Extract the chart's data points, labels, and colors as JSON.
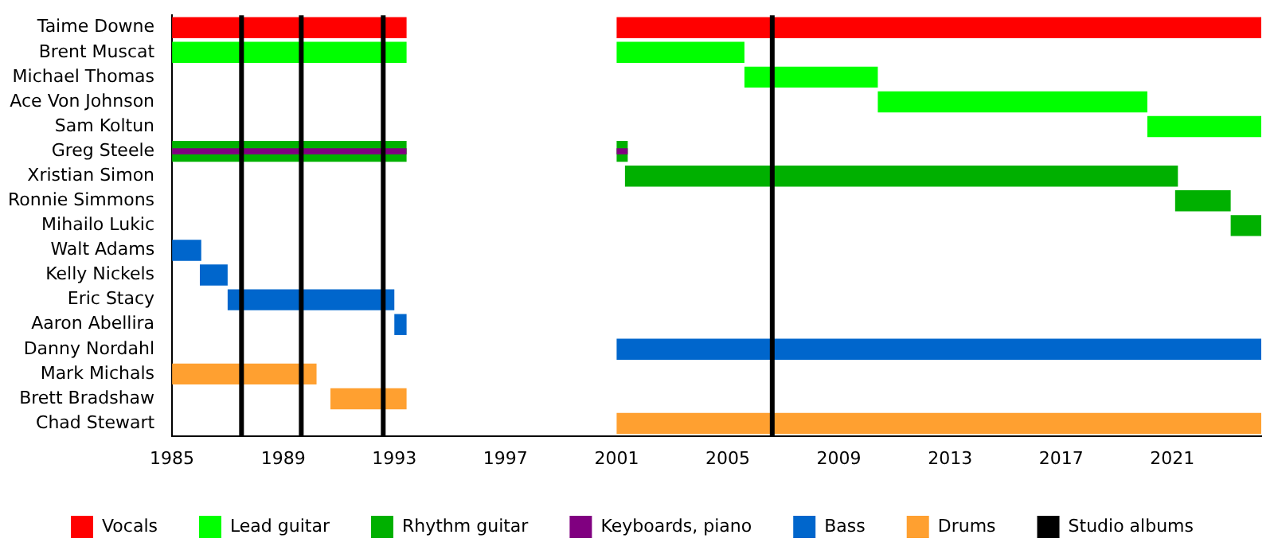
{
  "chart_data": {
    "type": "bar",
    "orientation": "horizontal",
    "categories": [
      "Taime Downe",
      "Brent Muscat",
      "Michael Thomas",
      "Ace Von Johnson",
      "Sam Koltun",
      "Greg Steele",
      "Xristian Simon",
      "Ronnie Simmons",
      "Mihailo Lukic",
      "Walt Adams",
      "Kelly Nickels",
      "Eric Stacy",
      "Aaron Abellira",
      "Danny Nordahl",
      "Mark Michals",
      "Brett Bradshaw",
      "Chad Stewart"
    ],
    "series": [
      {
        "name": "Vocals",
        "color": "#ff0000",
        "base": [
          1985,
          null,
          null,
          null,
          null,
          null,
          null,
          null,
          null,
          null,
          null,
          null,
          null,
          null,
          null,
          null,
          null
        ],
        "values": [
          8.44,
          null,
          null,
          null,
          null,
          null,
          null,
          null,
          null,
          null,
          null,
          null,
          null,
          null,
          null,
          null,
          null
        ]
      },
      {
        "color": "#ff0000",
        "base": [
          2001,
          null,
          null,
          null,
          null,
          null,
          null,
          null,
          null,
          null,
          null,
          null,
          null,
          null,
          null,
          null,
          null
        ],
        "values": [
          23.2,
          null,
          null,
          null,
          null,
          null,
          null,
          null,
          null,
          null,
          null,
          null,
          null,
          null,
          null,
          null,
          null
        ]
      },
      {
        "name": "Lead guitar",
        "color": "#00ff00",
        "base": [
          null,
          1985,
          2005.6,
          2010.4,
          2020.1,
          null,
          null,
          null,
          null,
          null,
          null,
          null,
          null,
          null,
          null,
          null,
          null
        ],
        "values": [
          null,
          8.44,
          4.8,
          9.7,
          4.1,
          null,
          null,
          null,
          null,
          null,
          null,
          null,
          null,
          null,
          null,
          null,
          null
        ]
      },
      {
        "color": "#00ff00",
        "base": [
          null,
          2001,
          null,
          null,
          null,
          null,
          null,
          null,
          null,
          null,
          null,
          null,
          null,
          null,
          null,
          null,
          null
        ],
        "values": [
          null,
          4.6,
          null,
          null,
          null,
          null,
          null,
          null,
          null,
          null,
          null,
          null,
          null,
          null,
          null,
          null,
          null
        ]
      },
      {
        "name": "Rhythm guitar",
        "color": "#00b000",
        "base": [
          null,
          null,
          null,
          null,
          null,
          1985,
          2001.3,
          2021.1,
          2023.1,
          null,
          null,
          null,
          null,
          null,
          null,
          null,
          null
        ],
        "values": [
          null,
          null,
          null,
          null,
          null,
          8.44,
          19.9,
          2.0,
          1.1,
          null,
          null,
          null,
          null,
          null,
          null,
          null,
          null
        ]
      },
      {
        "color": "#00b000",
        "base": [
          null,
          null,
          null,
          null,
          null,
          2001,
          null,
          null,
          null,
          null,
          null,
          null,
          null,
          null,
          null,
          null,
          null
        ],
        "values": [
          null,
          null,
          null,
          null,
          null,
          0.4,
          null,
          null,
          null,
          null,
          null,
          null,
          null,
          null,
          null,
          null,
          null
        ]
      },
      {
        "name": "Keyboards, piano",
        "color": "#800080",
        "base": [
          null,
          null,
          null,
          null,
          null,
          1985,
          null,
          null,
          null,
          null,
          null,
          null,
          null,
          null,
          null,
          null,
          null
        ],
        "values": [
          null,
          null,
          null,
          null,
          null,
          8.44,
          null,
          null,
          null,
          null,
          null,
          null,
          null,
          null,
          null,
          null,
          null
        ]
      },
      {
        "color": "#800080",
        "base": [
          null,
          null,
          null,
          null,
          null,
          2001,
          null,
          null,
          null,
          null,
          null,
          null,
          null,
          null,
          null,
          null,
          null
        ],
        "values": [
          null,
          null,
          null,
          null,
          null,
          0.4,
          null,
          null,
          null,
          null,
          null,
          null,
          null,
          null,
          null,
          null,
          null
        ]
      },
      {
        "name": "Bass",
        "color": "#0066cc",
        "base": [
          null,
          null,
          null,
          null,
          null,
          null,
          null,
          null,
          null,
          1985,
          1986,
          1987,
          1993,
          2001,
          null,
          null,
          null
        ],
        "values": [
          null,
          null,
          null,
          null,
          null,
          null,
          null,
          null,
          null,
          1.05,
          1.0,
          6.0,
          0.44,
          23.2,
          null,
          null,
          null
        ]
      },
      {
        "name": "Drums",
        "color": "#ffa030",
        "base": [
          null,
          null,
          null,
          null,
          null,
          null,
          null,
          null,
          null,
          null,
          null,
          null,
          null,
          null,
          1985,
          1990.7,
          2001
        ],
        "values": [
          null,
          null,
          null,
          null,
          null,
          null,
          null,
          null,
          null,
          null,
          null,
          null,
          null,
          null,
          5.2,
          2.74,
          23.2
        ]
      }
    ],
    "ref_lines": [
      {
        "axis": "x",
        "value": 1987.5,
        "label": "Studio albums",
        "color": "#000000"
      },
      {
        "axis": "x",
        "value": 1989.65,
        "color": "#000000"
      },
      {
        "axis": "x",
        "value": 1992.6,
        "color": "#000000"
      },
      {
        "axis": "x",
        "value": 2006.6,
        "color": "#000000"
      }
    ],
    "xlim": [
      1985,
      2024.2
    ],
    "xticks": [
      1985,
      1989,
      1993,
      1997,
      2001,
      2005,
      2009,
      2013,
      2017,
      2021
    ],
    "legend": "bottom",
    "grid": false
  }
}
